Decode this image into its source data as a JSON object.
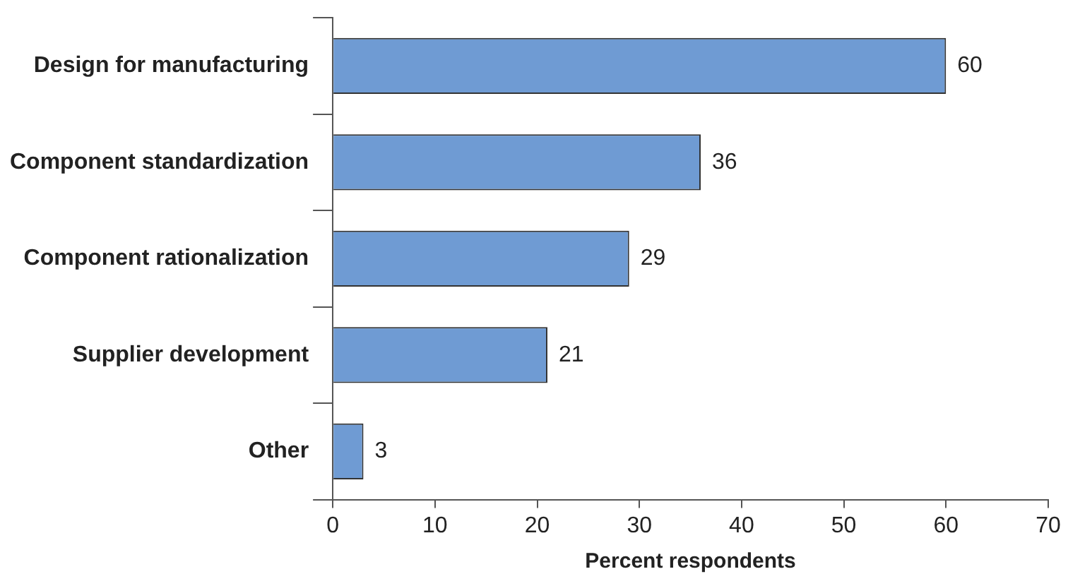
{
  "chart_data": {
    "type": "bar",
    "orientation": "horizontal",
    "xlabel": "Percent respondents",
    "categories": [
      "Design for manufacturing",
      "Component standardization",
      "Component rationalization",
      "Supplier development",
      "Other"
    ],
    "values": [
      60,
      36,
      29,
      21,
      3
    ],
    "color": "#6f9bd3",
    "xlim": [
      0,
      70
    ],
    "xticks": [
      0,
      10,
      20,
      30,
      40,
      50,
      60,
      70
    ],
    "grid": false,
    "legend": false,
    "data_labels": true
  }
}
